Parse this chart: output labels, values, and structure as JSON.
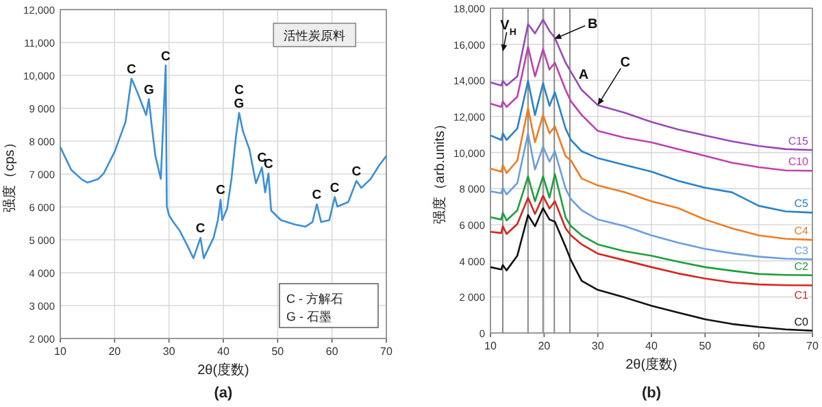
{
  "chart_data": [
    {
      "type": "line",
      "title": "活性炭原料",
      "subtitle": "(a)",
      "xlabel": "2θ(度数)",
      "ylabel": "强度（cps）",
      "xlim": [
        10,
        70
      ],
      "ylim": [
        2000,
        12000
      ],
      "xticks": [
        10,
        20,
        30,
        40,
        50,
        60,
        70
      ],
      "yticks": [
        {
          "value": 2000,
          "label": "2 000"
        },
        {
          "value": 3000,
          "label": "3 000"
        },
        {
          "value": 4000,
          "label": "4 000"
        },
        {
          "value": 5000,
          "label": "5 000"
        },
        {
          "value": 6000,
          "label": "6 000"
        },
        {
          "value": 7000,
          "label": "7 000"
        },
        {
          "value": 8000,
          "label": "8 000"
        },
        {
          "value": 9000,
          "label": "9 000"
        },
        {
          "value": 10000,
          "label": "10,000"
        },
        {
          "value": 11000,
          "label": "11,000"
        },
        {
          "value": 12000,
          "label": "12,000"
        }
      ],
      "grid": true,
      "series": [
        {
          "color": "#3a8fd6",
          "x": [
            10,
            12,
            14,
            15,
            17,
            18,
            20,
            22,
            23.1,
            24.2,
            25.8,
            26.3,
            26.8,
            27.5,
            28.5,
            29.4,
            29.6,
            30,
            30.8,
            32,
            33.3,
            34.5,
            35.8,
            36.4,
            37.4,
            38.2,
            39,
            39.5,
            39.8,
            40.7,
            41.5,
            42.3,
            42.9,
            43.6,
            44.8,
            46,
            47.1,
            47.7,
            48.3,
            48.8,
            50.6,
            53.1,
            55.1,
            56.4,
            57.2,
            58,
            59.5,
            60.5,
            61,
            63,
            64.5,
            65.4,
            67.1,
            68.7,
            70
          ],
          "values": [
            7820,
            7130,
            6830,
            6740,
            6850,
            7020,
            7680,
            8580,
            9900,
            9480,
            8790,
            9280,
            8510,
            7550,
            6850,
            10300,
            6020,
            5750,
            5540,
            5270,
            4850,
            4440,
            5060,
            4440,
            4790,
            5060,
            5600,
            6220,
            5600,
            5950,
            6850,
            8100,
            8860,
            8310,
            7750,
            6720,
            7200,
            6440,
            7020,
            5890,
            5600,
            5470,
            5400,
            5540,
            6080,
            5540,
            5600,
            6300,
            6010,
            6150,
            6790,
            6580,
            6850,
            7270,
            7550
          ]
        }
      ],
      "annotations": [
        {
          "text": "C",
          "x": 23.1,
          "y": 9900
        },
        {
          "text": "G",
          "x": 26.3,
          "y": 9280
        },
        {
          "text": "C",
          "x": 29.4,
          "y": 10300
        },
        {
          "text": "G",
          "x": 42.9,
          "y": 8860
        },
        {
          "text": "C",
          "x": 42.9,
          "y": 8860
        },
        {
          "text": "C",
          "x": 35.8,
          "y": 5060
        },
        {
          "text": "C",
          "x": 39.5,
          "y": 6220
        },
        {
          "text": "C",
          "x": 47.1,
          "y": 7200
        },
        {
          "text": "C",
          "x": 48.3,
          "y": 7020
        },
        {
          "text": "C",
          "x": 57.2,
          "y": 6080
        },
        {
          "text": "C",
          "x": 60.5,
          "y": 6300
        },
        {
          "text": "C",
          "x": 64.5,
          "y": 6790
        },
        "C - 方解石",
        "G - 石墨"
      ]
    },
    {
      "type": "line",
      "subtitle": "(b)",
      "xlabel": "2θ(度数)",
      "ylabel": "强度（arb.units）",
      "xlim": [
        10,
        70
      ],
      "ylim": [
        0,
        18000
      ],
      "xticks": [
        10,
        20,
        30,
        40,
        50,
        60,
        70
      ],
      "yticks": [
        0,
        {
          "value": 2000,
          "label": "2 000"
        },
        {
          "value": 4000,
          "label": "4 000"
        },
        {
          "value": 6000,
          "label": "6 000"
        },
        {
          "value": 8000,
          "label": "8 000"
        },
        {
          "value": 10000,
          "label": "10,000"
        },
        {
          "value": 12000,
          "label": "12,000"
        },
        {
          "value": 14000,
          "label": "14,000"
        },
        {
          "value": 16000,
          "label": "16,000"
        },
        {
          "value": 18000,
          "label": "18,000"
        }
      ],
      "grid": true,
      "x": [
        10,
        12,
        12.3,
        13,
        15,
        17,
        18.3,
        19.8,
        21,
        22,
        24,
        25,
        27,
        30,
        35,
        40,
        45,
        50,
        55,
        60,
        65,
        70
      ],
      "series": [
        {
          "name": "C0",
          "color": "#111111",
          "values": [
            3650,
            3520,
            3770,
            3470,
            4280,
            6540,
            5920,
            6920,
            6290,
            6170,
            4780,
            4030,
            2890,
            2390,
            1970,
            1510,
            1130,
            760,
            500,
            330,
            200,
            130
          ]
        },
        {
          "name": "C1",
          "color": "#d7261e",
          "values": [
            5610,
            5540,
            5920,
            5490,
            6040,
            7500,
            6600,
            7600,
            6900,
            7300,
            5800,
            5410,
            4910,
            4400,
            4030,
            3650,
            3300,
            3020,
            2800,
            2690,
            2650,
            2640
          ]
        },
        {
          "name": "C2",
          "color": "#1e9e3c",
          "values": [
            6420,
            6290,
            6670,
            6240,
            6800,
            8680,
            7300,
            8680,
            7500,
            8810,
            6400,
            5920,
            5410,
            4910,
            4530,
            4280,
            3950,
            3650,
            3450,
            3270,
            3220,
            3200
          ]
        },
        {
          "name": "C3",
          "color": "#6a9ee0",
          "values": [
            7850,
            7750,
            8050,
            7680,
            8300,
            11070,
            9060,
            10320,
            9500,
            10070,
            8000,
            7420,
            6800,
            6290,
            5920,
            5410,
            5000,
            4660,
            4420,
            4230,
            4120,
            4080
          ]
        },
        {
          "name": "C4",
          "color": "#ee7d22",
          "values": [
            9110,
            8940,
            9310,
            8860,
            9560,
            12460,
            10570,
            12080,
            11070,
            11450,
            9800,
            9560,
            8560,
            8180,
            7800,
            7300,
            6920,
            6290,
            5800,
            5410,
            5220,
            5160
          ]
        },
        {
          "name": "C5",
          "color": "#2a82c8",
          "values": [
            10950,
            10700,
            11070,
            10700,
            11330,
            13970,
            12080,
            13840,
            12590,
            13340,
            11330,
            10700,
            10070,
            9690,
            9310,
            8940,
            8430,
            8050,
            7800,
            7050,
            6740,
            6670
          ]
        },
        {
          "name": "C10",
          "color": "#c040b0",
          "values": [
            12710,
            12530,
            12840,
            12530,
            13090,
            15860,
            14220,
            15730,
            14600,
            14980,
            13470,
            12840,
            12080,
            11200,
            10820,
            10570,
            10190,
            9820,
            9440,
            9190,
            9010,
            8990
          ]
        },
        {
          "name": "C15",
          "color": "#9a4ab8",
          "values": [
            13890,
            13720,
            13970,
            13720,
            14220,
            17120,
            16610,
            17370,
            16740,
            16360,
            14980,
            14470,
            13470,
            12630,
            12210,
            11700,
            11280,
            10950,
            10620,
            10370,
            10190,
            10140
          ]
        }
      ],
      "ref_lines": [
        {
          "axis": "x",
          "value": 12.3,
          "color": "#888888"
        },
        {
          "axis": "x",
          "value": 17,
          "color": "#888888"
        },
        {
          "axis": "x",
          "value": 19.8,
          "color": "#888888"
        },
        {
          "axis": "x",
          "value": 21.9,
          "color": "#888888"
        },
        {
          "axis": "x",
          "value": 24.8,
          "color": "#888888"
        }
      ],
      "annotations": [
        {
          "text": "V$_{H}$",
          "x": 12.3,
          "y": 15600
        },
        {
          "text": "B",
          "x": 21.9,
          "y": 16300
        },
        {
          "text": "A",
          "x": 24.8,
          "y": 15000
        },
        {
          "text": "C",
          "x": 30,
          "y": 12630
        }
      ]
    }
  ]
}
